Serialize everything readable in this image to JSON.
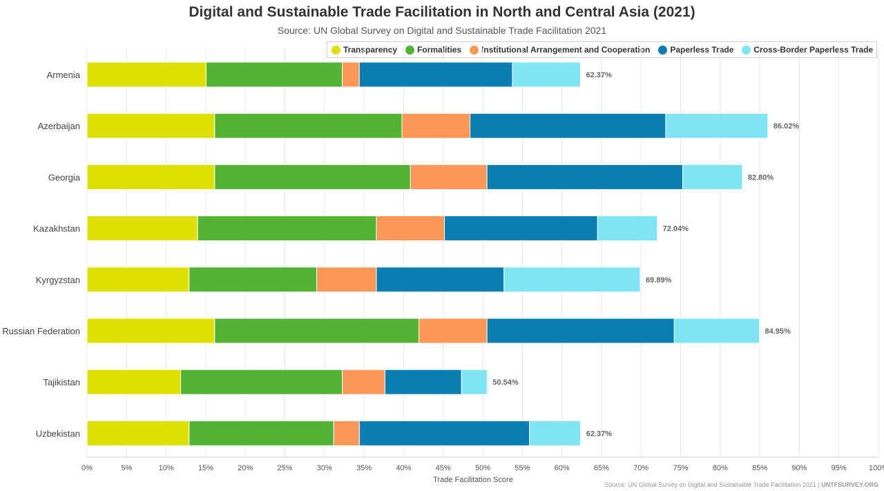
{
  "chart_data": {
    "type": "bar",
    "orientation": "horizontal",
    "stacked": true,
    "title": "Digital and Sustainable Trade Facilitation in North and Central Asia (2021)",
    "subtitle": "Source: UN Global Survey on Digital and Sustainable Trade Facilitation 2021",
    "xlabel": "Trade Facilitation Score",
    "xlim": [
      0,
      100
    ],
    "x_ticks": [
      "0%",
      "5%",
      "10%",
      "15%",
      "20%",
      "25%",
      "30%",
      "35%",
      "40%",
      "45%",
      "50%",
      "55%",
      "60%",
      "65%",
      "70%",
      "75%",
      "80%",
      "85%",
      "90%",
      "95%",
      "100%"
    ],
    "categories": [
      "Armenia",
      "Azerbaijan",
      "Georgia",
      "Kazakhstan",
      "Kyrgyzstan",
      "Russian Federation",
      "Tajikistan",
      "Uzbekistan"
    ],
    "series": [
      {
        "name": "Transparency",
        "color": "#dde000",
        "values": [
          15.05,
          16.13,
          16.13,
          13.98,
          12.9,
          16.13,
          11.83,
          12.9
        ]
      },
      {
        "name": "Formalities",
        "color": "#52b234",
        "values": [
          17.2,
          23.66,
          24.73,
          22.58,
          16.13,
          25.81,
          20.43,
          18.28
        ]
      },
      {
        "name": "Institutional Arrangement and Cooperation",
        "color": "#fe9658",
        "values": [
          2.15,
          8.6,
          9.68,
          8.6,
          7.53,
          8.6,
          5.38,
          3.23
        ]
      },
      {
        "name": "Paperless Trade",
        "color": "#0a7eb0",
        "values": [
          19.35,
          24.73,
          24.73,
          19.35,
          16.13,
          23.66,
          9.68,
          21.51
        ]
      },
      {
        "name": "Cross-Border Paperless Trade",
        "color": "#7fe4f4",
        "values": [
          8.6,
          12.9,
          7.53,
          7.53,
          17.2,
          10.75,
          3.23,
          6.45
        ]
      }
    ],
    "totals": [
      "62.37%",
      "86.02%",
      "82.80%",
      "72.04%",
      "69.89%",
      "84.95%",
      "50.54%",
      "62.37%"
    ],
    "grid": true,
    "legend_position": "top-right"
  },
  "footer": {
    "source_text": "Source: UN Global Survey on Digital and Sustainable Trade Facilitation 2021",
    "separator": " | ",
    "site": "UNTFSURVEY.ORG"
  }
}
